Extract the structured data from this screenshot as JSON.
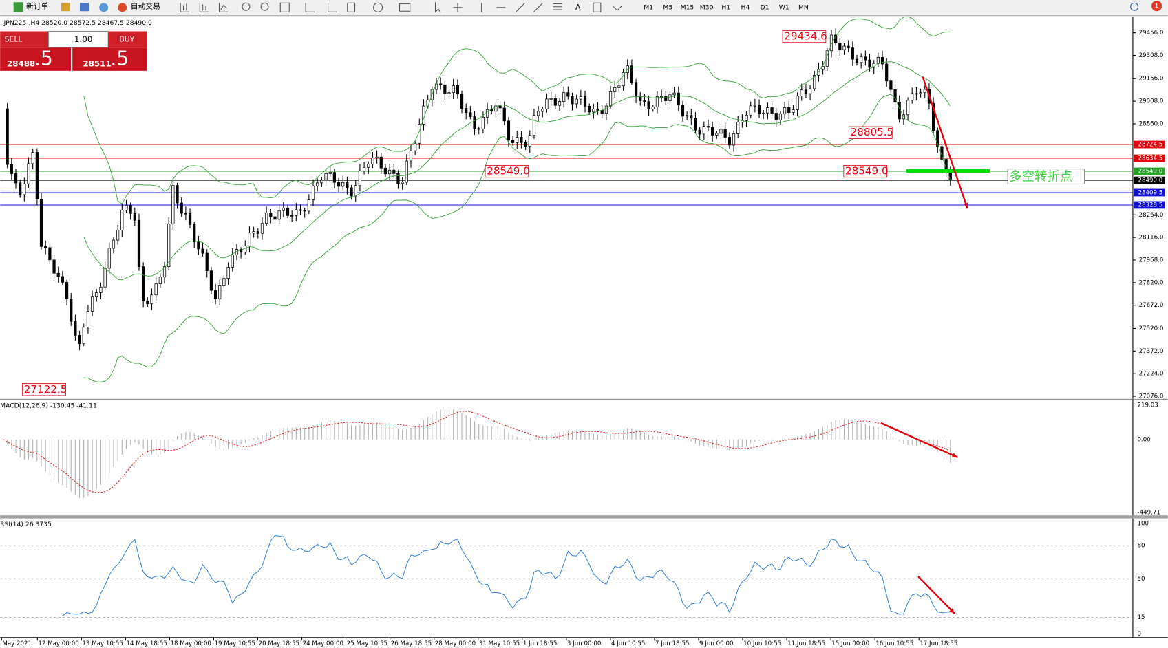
{
  "toolbar": {
    "new_order": "新订单",
    "auto_trading": "自动交易",
    "timeframes": [
      "M1",
      "M5",
      "M15",
      "M30",
      "H1",
      "H4",
      "D1",
      "W1",
      "MN"
    ],
    "notification_count": "1"
  },
  "trade_panel": {
    "sell": "SELL",
    "buy": "BUY",
    "volume": "1.00",
    "bid_main": "28488",
    "bid_pip": ".5",
    "ask_main": "28511",
    "ask_pip": ".5"
  },
  "chart": {
    "header": "JPN225-,H4  28520.0 28572.5 28467.5 28490.0",
    "price_axis": [
      "29456.0",
      "29308.0",
      "29156.0",
      "29008.0",
      "28860.0",
      "28264.0",
      "28116.0",
      "27968.0",
      "27820.0",
      "27672.0",
      "27520.0",
      "27372.0",
      "27224.0",
      "27076.0"
    ],
    "levels": [
      {
        "label": "28724.5",
        "color": "#e8000b"
      },
      {
        "label": "28634.5",
        "color": "#e8000b"
      },
      {
        "label": "28549.0",
        "color": "#1fa81f"
      },
      {
        "label": "28490.0",
        "color": "#000000"
      },
      {
        "label": "28409.5",
        "color": "#1010e0"
      },
      {
        "label": "28328.5",
        "color": "#1010e0"
      }
    ],
    "annotations": [
      "29434.6",
      "28805.5",
      "28549.0",
      "28549.0",
      "27122.5"
    ],
    "signal_text": "多空转折点",
    "dates": [
      "May 2021",
      "12 May 00:00",
      "13 May 10:55",
      "14 May 18:55",
      "18 May 00:00",
      "19 May 10:55",
      "20 May 18:55",
      "24 May 00:00",
      "25 May 10:55",
      "26 May 18:55",
      "28 May 00:00",
      "31 May 10:55",
      "1 Jun 18:55",
      "3 Jun 00:00",
      "4 Jun 10:55",
      "7 Jun 18:55",
      "9 Jun 00:00",
      "10 Jun 10:55",
      "11 Jun 18:55",
      "15 Jun 00:00",
      "16 Jun 10:55",
      "17 Jun 18:55"
    ]
  },
  "macd": {
    "label": "MACD(12,26,9) -130.45 -41.11",
    "axis": [
      "219.03",
      "0.00",
      "-449.71"
    ]
  },
  "rsi": {
    "label": "RSI(14) 26.3735",
    "axis": [
      "100",
      "80",
      "50",
      "15",
      "0"
    ]
  }
}
